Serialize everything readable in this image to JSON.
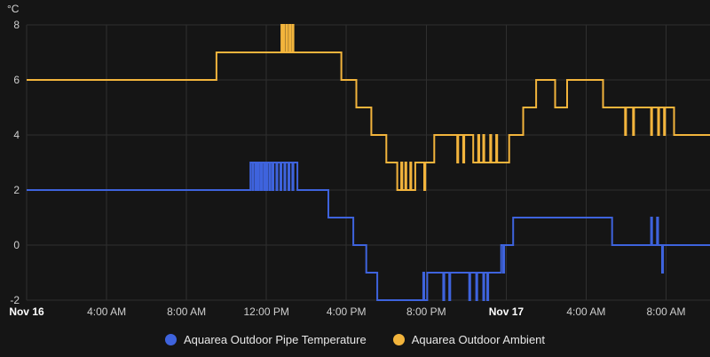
{
  "legend": {
    "items": [
      {
        "label": "Aquarea Outdoor Pipe Temperature",
        "color": "#3e63dd"
      },
      {
        "label": "Aquarea Outdoor Ambient",
        "color": "#f2b43c"
      }
    ]
  },
  "chart_data": {
    "type": "line",
    "step": true,
    "title": "",
    "xlabel": "",
    "ylabel": "°C",
    "x_unit": "hours since Nov 16 00:00",
    "x_range": [
      0,
      34.2
    ],
    "y_range": [
      -2,
      8
    ],
    "y_ticks": [
      8,
      6,
      4,
      2,
      0,
      -2
    ],
    "x_ticks": [
      {
        "t": 0,
        "label": "Nov 16",
        "bold": true
      },
      {
        "t": 4,
        "label": "4:00 AM"
      },
      {
        "t": 8,
        "label": "8:00 AM"
      },
      {
        "t": 12,
        "label": "12:00 PM"
      },
      {
        "t": 16,
        "label": "4:00 PM"
      },
      {
        "t": 20,
        "label": "8:00 PM"
      },
      {
        "t": 24,
        "label": "Nov 17",
        "bold": true
      },
      {
        "t": 28,
        "label": "4:00 AM"
      },
      {
        "t": 32,
        "label": "8:00 AM"
      }
    ],
    "grid": true,
    "legend_position": "bottom",
    "series": [
      {
        "name": "Aquarea Outdoor Ambient",
        "color": "#f2b43c",
        "points": [
          [
            0,
            6
          ],
          [
            9.5,
            7
          ],
          [
            12.75,
            8
          ],
          [
            12.8,
            7
          ],
          [
            12.85,
            8
          ],
          [
            12.9,
            7
          ],
          [
            13.0,
            8
          ],
          [
            13.05,
            7
          ],
          [
            13.15,
            8
          ],
          [
            13.2,
            7
          ],
          [
            13.3,
            8
          ],
          [
            13.35,
            7
          ],
          [
            15.75,
            6
          ],
          [
            16.5,
            5
          ],
          [
            17.25,
            4
          ],
          [
            18.0,
            3
          ],
          [
            18.55,
            2
          ],
          [
            18.75,
            3
          ],
          [
            18.8,
            2
          ],
          [
            18.95,
            3
          ],
          [
            19.0,
            2
          ],
          [
            19.2,
            3
          ],
          [
            19.25,
            2
          ],
          [
            19.45,
            3
          ],
          [
            19.9,
            2
          ],
          [
            19.95,
            3
          ],
          [
            20.4,
            4
          ],
          [
            21.55,
            3
          ],
          [
            21.6,
            4
          ],
          [
            21.85,
            3
          ],
          [
            21.9,
            4
          ],
          [
            22.35,
            3
          ],
          [
            22.6,
            4
          ],
          [
            22.65,
            3
          ],
          [
            22.85,
            4
          ],
          [
            22.9,
            3
          ],
          [
            23.2,
            4
          ],
          [
            23.25,
            3
          ],
          [
            23.5,
            4
          ],
          [
            23.55,
            3
          ],
          [
            24.15,
            4
          ],
          [
            24.85,
            5
          ],
          [
            25.5,
            6
          ],
          [
            26.45,
            5
          ],
          [
            27.05,
            6
          ],
          [
            28.85,
            5
          ],
          [
            29.95,
            4
          ],
          [
            30.0,
            5
          ],
          [
            30.35,
            4
          ],
          [
            30.4,
            5
          ],
          [
            31.25,
            4
          ],
          [
            31.3,
            5
          ],
          [
            31.6,
            4
          ],
          [
            31.65,
            5
          ],
          [
            31.9,
            4
          ],
          [
            31.95,
            5
          ],
          [
            32.4,
            4
          ]
        ]
      },
      {
        "name": "Aquarea Outdoor Pipe Temperature",
        "color": "#3e63dd",
        "points": [
          [
            0,
            2
          ],
          [
            11.2,
            3
          ],
          [
            11.3,
            2
          ],
          [
            11.35,
            3
          ],
          [
            11.45,
            2
          ],
          [
            11.5,
            3
          ],
          [
            11.58,
            2
          ],
          [
            11.63,
            3
          ],
          [
            11.72,
            2
          ],
          [
            11.77,
            3
          ],
          [
            11.87,
            2
          ],
          [
            11.92,
            3
          ],
          [
            12.0,
            2
          ],
          [
            12.05,
            3
          ],
          [
            12.15,
            2
          ],
          [
            12.2,
            3
          ],
          [
            12.3,
            2
          ],
          [
            12.35,
            3
          ],
          [
            12.5,
            2
          ],
          [
            12.55,
            3
          ],
          [
            12.7,
            2
          ],
          [
            12.75,
            3
          ],
          [
            12.9,
            2
          ],
          [
            12.95,
            3
          ],
          [
            13.1,
            2
          ],
          [
            13.15,
            3
          ],
          [
            13.3,
            2
          ],
          [
            13.35,
            3
          ],
          [
            13.55,
            2
          ],
          [
            15.1,
            1
          ],
          [
            16.35,
            0
          ],
          [
            17.0,
            -1
          ],
          [
            17.55,
            -2
          ],
          [
            19.85,
            -1
          ],
          [
            19.9,
            -2
          ],
          [
            20.05,
            -1
          ],
          [
            20.85,
            -2
          ],
          [
            20.9,
            -1
          ],
          [
            21.15,
            -2
          ],
          [
            21.2,
            -1
          ],
          [
            22.15,
            -2
          ],
          [
            22.2,
            -1
          ],
          [
            22.5,
            -2
          ],
          [
            22.55,
            -1
          ],
          [
            22.85,
            -2
          ],
          [
            22.9,
            -1
          ],
          [
            23.05,
            -2
          ],
          [
            23.1,
            -1
          ],
          [
            23.75,
            0
          ],
          [
            23.85,
            -1
          ],
          [
            23.9,
            0
          ],
          [
            24.35,
            1
          ],
          [
            29.3,
            0
          ],
          [
            31.25,
            1
          ],
          [
            31.3,
            0
          ],
          [
            31.55,
            1
          ],
          [
            31.6,
            0
          ],
          [
            31.8,
            -1
          ],
          [
            31.85,
            0
          ]
        ]
      }
    ],
    "colors": {
      "background": "#151515",
      "grid": "#2f2f2f",
      "tick_text": "#cfcfcf",
      "date_text": "#ffffff"
    }
  }
}
